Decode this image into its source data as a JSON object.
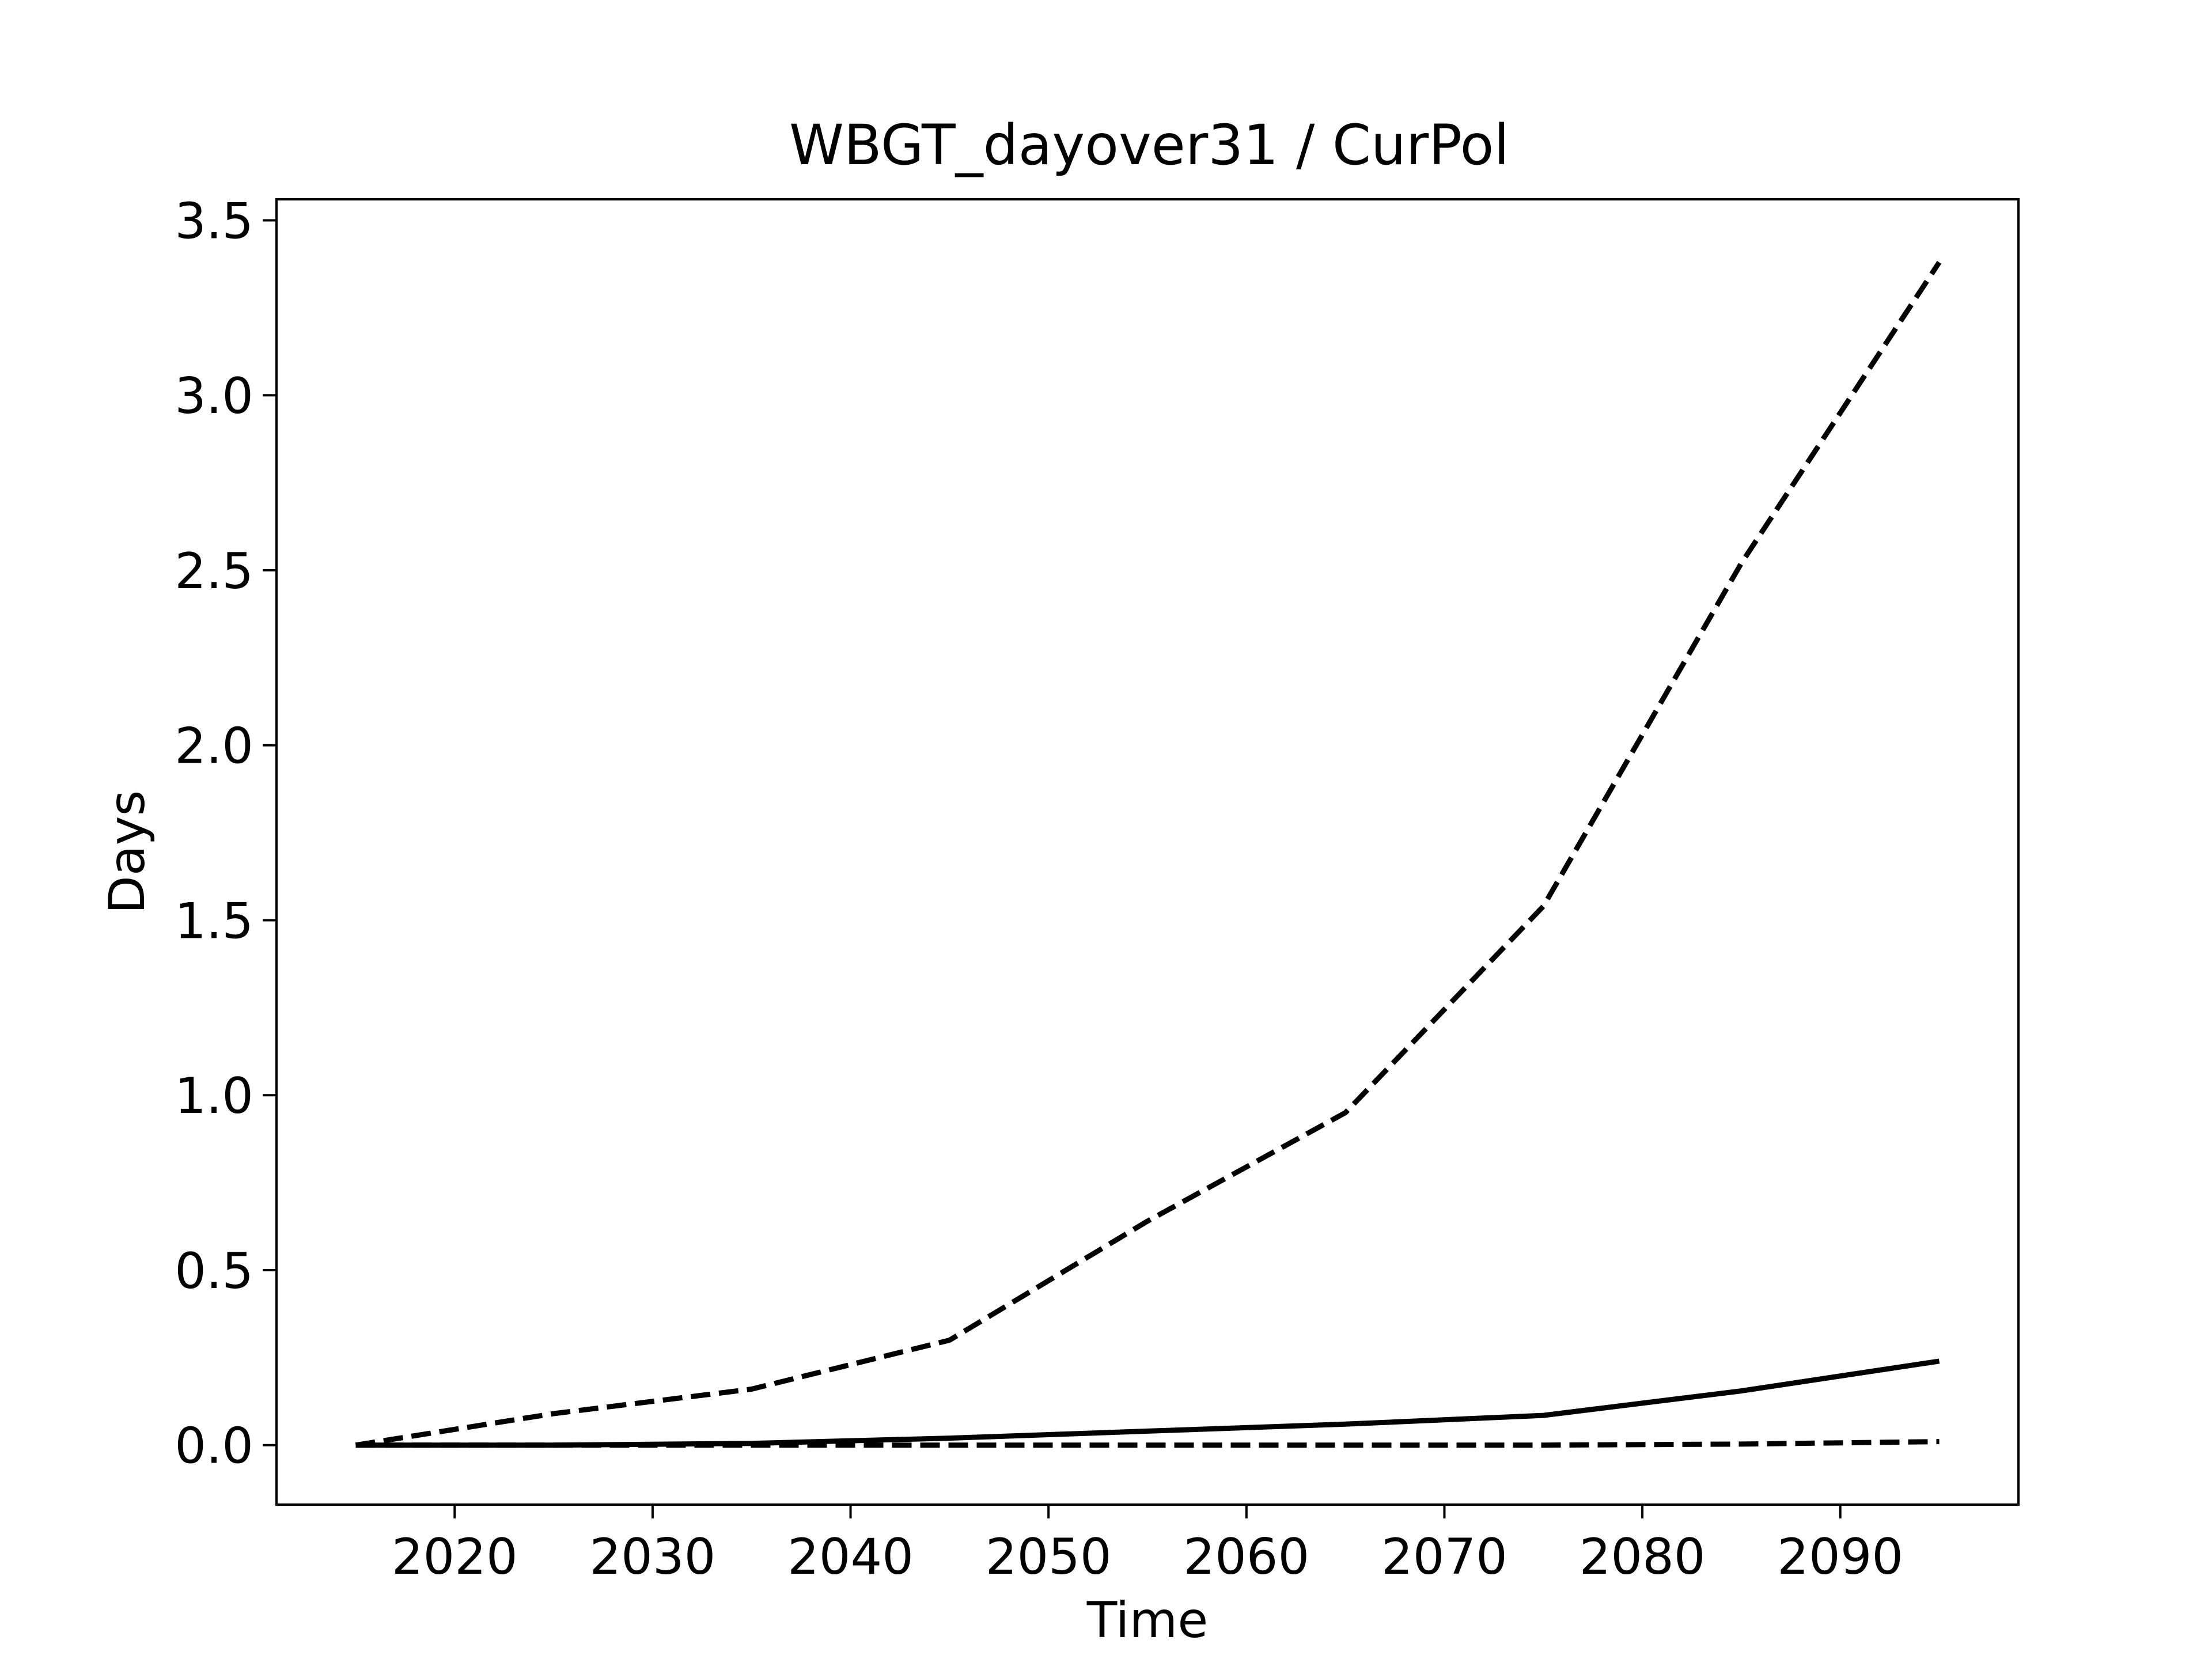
{
  "chart_data": {
    "type": "line",
    "title": "WBGT_dayover31 / CurPol",
    "xlabel": "Time",
    "ylabel": "Days",
    "xlim": [
      2011,
      2099
    ],
    "ylim": [
      -0.17,
      3.56
    ],
    "x_ticks": [
      2020,
      2030,
      2040,
      2050,
      2060,
      2070,
      2080,
      2090
    ],
    "y_ticks": [
      0.0,
      0.5,
      1.0,
      1.5,
      2.0,
      2.5,
      3.0,
      3.5
    ],
    "y_tick_labels": [
      "0.0",
      "0.5",
      "1.0",
      "1.5",
      "2.0",
      "2.5",
      "3.0",
      "3.5"
    ],
    "x_tick_labels": [
      "2020",
      "2030",
      "2040",
      "2050",
      "2060",
      "2070",
      "2080",
      "2090"
    ],
    "grid": false,
    "legend": "none",
    "x": [
      2015,
      2025,
      2035,
      2045,
      2055,
      2065,
      2075,
      2085,
      2095
    ],
    "series": [
      {
        "style": "dashed",
        "color": "#000000",
        "values": [
          0.0,
          0.09,
          0.16,
          0.3,
          0.64,
          0.95,
          1.54,
          2.52,
          3.38
        ]
      },
      {
        "style": "solid",
        "color": "#000000",
        "values": [
          0.0,
          0.0,
          0.005,
          0.02,
          0.04,
          0.06,
          0.085,
          0.155,
          0.24
        ]
      },
      {
        "style": "dashed",
        "color": "#000000",
        "values": [
          0.0,
          0.0,
          0.0,
          0.0,
          0.0,
          0.0,
          0.0,
          0.003,
          0.01
        ]
      }
    ]
  }
}
